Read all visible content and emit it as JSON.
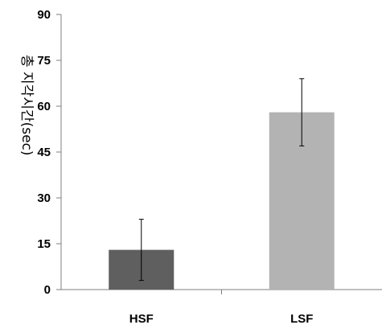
{
  "chart_data": {
    "type": "bar",
    "title": "",
    "xlabel": "",
    "ylabel": "총 지각시간(sec)",
    "ylim": [
      0,
      90
    ],
    "yticks": [
      0,
      15,
      30,
      45,
      60,
      75,
      90
    ],
    "categories": [
      "HSF",
      "LSF"
    ],
    "values": [
      13,
      58
    ],
    "errors": [
      {
        "low": 3,
        "high": 23
      },
      {
        "low": 47,
        "high": 69
      }
    ],
    "colors": [
      "#5f5f5f",
      "#b3b3b3"
    ],
    "grid": false,
    "legend": "none"
  }
}
